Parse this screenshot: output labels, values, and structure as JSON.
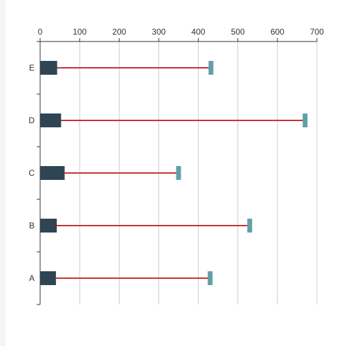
{
  "chart_data": {
    "type": "bar",
    "orientation": "horizontal",
    "categories": [
      "A",
      "B",
      "C",
      "D",
      "E"
    ],
    "series": [
      {
        "values": [
          40,
          42,
          62,
          53,
          43
        ]
      },
      {
        "values": [
          430,
          530,
          350,
          670,
          432
        ]
      }
    ],
    "range_start": [
      40,
      42,
      62,
      53,
      43
    ],
    "range_end": [
      430,
      530,
      350,
      670,
      432
    ],
    "x_ticks": [
      0,
      100,
      200,
      300,
      400,
      500,
      600,
      700
    ],
    "xlim": [
      0,
      700
    ],
    "axis_position": "top",
    "grid": true,
    "colors": {
      "bar": "#2f4554",
      "line": "#c23531",
      "end_marker": "#61a0a8",
      "grid": "#cccccc",
      "axis": "#333333"
    }
  }
}
